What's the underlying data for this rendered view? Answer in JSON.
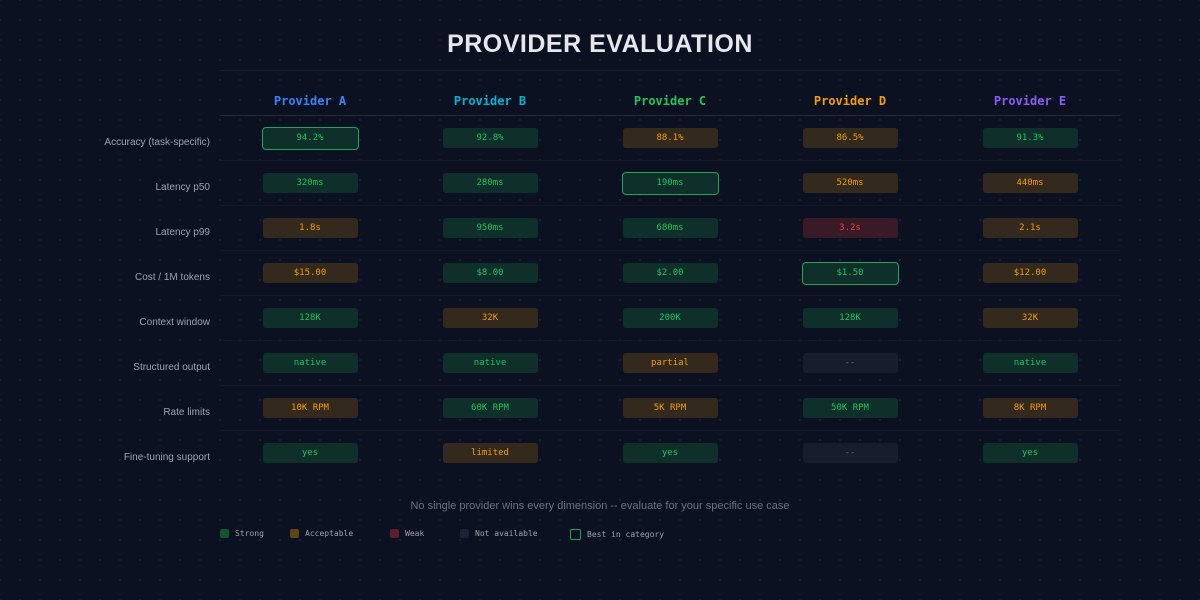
{
  "title": "PROVIDER EVALUATION",
  "providers": [
    {
      "name": "Provider A",
      "color": "#3b82f6"
    },
    {
      "name": "Provider B",
      "color": "#06b6d4"
    },
    {
      "name": "Provider C",
      "color": "#22c55e"
    },
    {
      "name": "Provider D",
      "color": "#f59e0b"
    },
    {
      "name": "Provider E",
      "color": "#8b5cf6"
    }
  ],
  "rows": [
    {
      "label": "Accuracy (task-specific)",
      "cells": [
        {
          "v": "94.2%",
          "r": "s",
          "best": true
        },
        {
          "v": "92.8%",
          "r": "s"
        },
        {
          "v": "88.1%",
          "r": "a"
        },
        {
          "v": "86.5%",
          "r": "a"
        },
        {
          "v": "91.3%",
          "r": "s"
        }
      ]
    },
    {
      "label": "Latency p50",
      "cells": [
        {
          "v": "320ms",
          "r": "s"
        },
        {
          "v": "280ms",
          "r": "s"
        },
        {
          "v": "190ms",
          "r": "s",
          "best": true
        },
        {
          "v": "520ms",
          "r": "a"
        },
        {
          "v": "440ms",
          "r": "a"
        }
      ]
    },
    {
      "label": "Latency p99",
      "cells": [
        {
          "v": "1.8s",
          "r": "a"
        },
        {
          "v": "950ms",
          "r": "s"
        },
        {
          "v": "680ms",
          "r": "s"
        },
        {
          "v": "3.2s",
          "r": "w"
        },
        {
          "v": "2.1s",
          "r": "a"
        }
      ]
    },
    {
      "label": "Cost / 1M tokens",
      "cells": [
        {
          "v": "$15.00",
          "r": "a"
        },
        {
          "v": "$8.00",
          "r": "s"
        },
        {
          "v": "$2.00",
          "r": "s"
        },
        {
          "v": "$1.50",
          "r": "s",
          "best": true
        },
        {
          "v": "$12.00",
          "r": "a"
        }
      ]
    },
    {
      "label": "Context window",
      "cells": [
        {
          "v": "128K",
          "r": "s"
        },
        {
          "v": "32K",
          "r": "a"
        },
        {
          "v": "200K",
          "r": "s"
        },
        {
          "v": "128K",
          "r": "s"
        },
        {
          "v": "32K",
          "r": "a"
        }
      ]
    },
    {
      "label": "Structured output",
      "cells": [
        {
          "v": "native",
          "r": "s"
        },
        {
          "v": "native",
          "r": "s"
        },
        {
          "v": "partial",
          "r": "a"
        },
        {
          "v": "--",
          "r": "n"
        },
        {
          "v": "native",
          "r": "s"
        }
      ]
    },
    {
      "label": "Rate limits",
      "cells": [
        {
          "v": "10K RPM",
          "r": "a"
        },
        {
          "v": "60K RPM",
          "r": "s"
        },
        {
          "v": "5K RPM",
          "r": "a"
        },
        {
          "v": "50K RPM",
          "r": "s"
        },
        {
          "v": "8K RPM",
          "r": "a"
        }
      ]
    },
    {
      "label": "Fine-tuning support",
      "cells": [
        {
          "v": "yes",
          "r": "s"
        },
        {
          "v": "limited",
          "r": "a"
        },
        {
          "v": "yes",
          "r": "s"
        },
        {
          "v": "--",
          "r": "n"
        },
        {
          "v": "yes",
          "r": "s"
        }
      ]
    }
  ],
  "note": "No single provider wins every dimension -- evaluate for your specific use case",
  "legend": [
    {
      "label": "Strong",
      "color": "#14532d"
    },
    {
      "label": "Acceptable",
      "color": "#5c4519"
    },
    {
      "label": "Weak",
      "color": "#5c1f2a"
    },
    {
      "label": "Not available",
      "color": "#1a2234"
    },
    {
      "label": "Best in category",
      "color": "outline"
    }
  ]
}
